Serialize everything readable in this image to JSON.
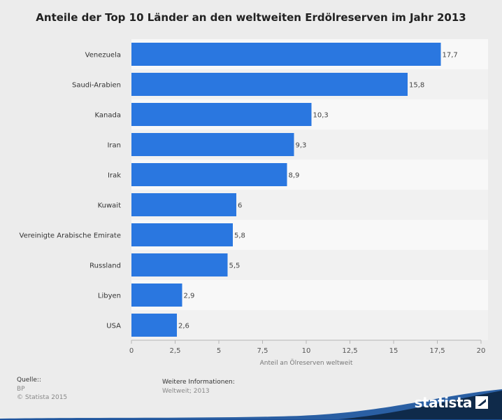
{
  "chart_data": {
    "type": "bar",
    "orientation": "horizontal",
    "title": "Anteile der Top 10 Länder an den weltweiten Erdölreserven im Jahr 2013",
    "xlabel": "Anteil an Ölreserven weltweit",
    "ylabel": "",
    "categories": [
      "Venezuela",
      "Saudi-Arabien",
      "Kanada",
      "Iran",
      "Irak",
      "Kuwait",
      "Vereinigte Arabische Emirate",
      "Russland",
      "Libyen",
      "USA"
    ],
    "values": [
      17.7,
      15.8,
      10.3,
      9.3,
      8.9,
      6,
      5.8,
      5.5,
      2.9,
      2.6
    ],
    "value_labels": [
      "17,7",
      "15,8",
      "10,3",
      "9,3",
      "8,9",
      "6",
      "5,8",
      "5,5",
      "2,9",
      "2,6"
    ],
    "xlim": [
      0,
      20
    ],
    "xticks": [
      0,
      2.5,
      5,
      7.5,
      10,
      12.5,
      15,
      17.5,
      20
    ],
    "xtick_labels": [
      "0",
      "2,5",
      "5",
      "7,5",
      "10",
      "12,5",
      "15",
      "17,5",
      "20"
    ],
    "bar_color": "#2a77e0",
    "grid": false
  },
  "footer": {
    "source_label": "Quelle::",
    "source_value": "BP",
    "copyright": "© Statista 2015",
    "info_label": "Weitere Informationen:",
    "info_value": "Weltweit; 2013"
  },
  "brand": {
    "name": "statista",
    "icon": "statista-logo-icon",
    "color": "#0f2a4a"
  }
}
